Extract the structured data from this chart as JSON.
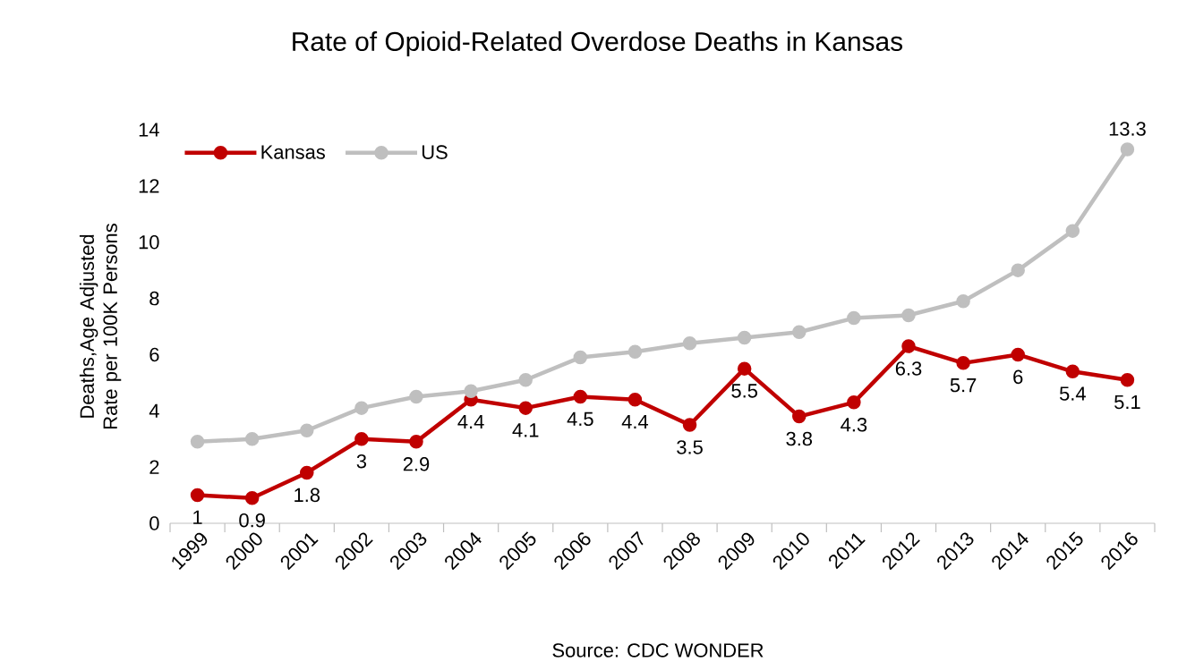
{
  "chart_data": {
    "type": "line",
    "title": "Rate of Opioid-Related Overdose Deaths in Kansas",
    "ylabel": "Deaths,Age Adjusted Rate per 100K Persons",
    "annotations": [
      "Source: CDC WONDER"
    ],
    "categories": [
      "1999",
      "2000",
      "2001",
      "2002",
      "2003",
      "2004",
      "2005",
      "2006",
      "2007",
      "2008",
      "2009",
      "2010",
      "2011",
      "2012",
      "2013",
      "2014",
      "2015",
      "2016"
    ],
    "series": [
      {
        "name": "Kansas",
        "color": "#c00000",
        "values": [
          1,
          0.9,
          1.8,
          3,
          2.9,
          4.4,
          4.1,
          4.5,
          4.4,
          3.5,
          5.5,
          3.8,
          4.3,
          6.3,
          5.7,
          6,
          5.4,
          5.1
        ],
        "value_labels": [
          "1",
          "0.9",
          "1.8",
          "3",
          "2.9",
          "4.4",
          "4.1",
          "4.5",
          "4.4",
          "3.5",
          "5.5",
          "3.8",
          "4.3",
          "6.3",
          "5.7",
          "6",
          "5.4",
          "5.1"
        ]
      },
      {
        "name": "US",
        "color": "#bfbfbf",
        "values": [
          2.9,
          3.0,
          3.3,
          4.1,
          4.5,
          4.7,
          5.1,
          5.9,
          6.1,
          6.4,
          6.6,
          6.8,
          7.3,
          7.4,
          7.9,
          9.0,
          10.4,
          13.3
        ],
        "value_labels": [
          null,
          null,
          null,
          null,
          null,
          null,
          null,
          null,
          null,
          null,
          null,
          null,
          null,
          null,
          null,
          null,
          null,
          "13.3"
        ]
      }
    ],
    "ylim": [
      0,
      14
    ],
    "yticks": [
      0,
      2,
      4,
      6,
      8,
      10,
      12,
      14
    ],
    "legend": "top left",
    "marker": "circle",
    "grid": false
  }
}
